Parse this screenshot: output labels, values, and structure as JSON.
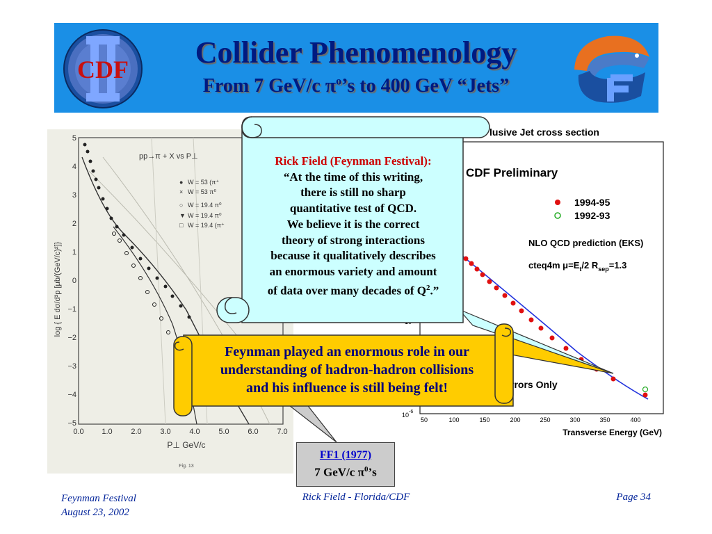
{
  "header": {
    "title": "Collider Phenomenology",
    "subtitle_parts": [
      "From 7 GeV/c ",
      "π",
      "o",
      "’s to 400 GeV “Jets”"
    ],
    "left_logo_text": "CDF",
    "banner_color": "#1a8fe6",
    "title_color": "#001a80"
  },
  "left_plot": {
    "reaction": "pp→π + X  vs  P⊥",
    "legend": [
      {
        "marker": "●",
        "label": "W = 53  (π⁺"
      },
      {
        "marker": "×",
        "label": "W = 53  π⁰"
      },
      {
        "marker": "○",
        "label": "W = 19.4 π⁰"
      },
      {
        "marker": "▼",
        "label": "W = 19.4 π⁰"
      },
      {
        "marker": "□",
        "label": "W = 19.4 (π⁺"
      }
    ],
    "ylabel": "log { E dσ/d³p [μb/(GeV/c)²]}",
    "xlabel": "P⊥  GeV/c",
    "yticks": [
      "5",
      "4",
      "3",
      "2",
      "1",
      "0",
      "−1",
      "−2",
      "−3",
      "−4",
      "−5"
    ],
    "xticks": [
      "0.0",
      "1.0",
      "2.0",
      "3.0",
      "4.0",
      "5.0",
      "6.0",
      "7.0"
    ],
    "figure_label": "Fig. 13"
  },
  "right_plot": {
    "title_fragment": "lusive Jet cross section",
    "preliminary": "CDF Preliminary",
    "legend": [
      {
        "marker": "●",
        "label": "1994-95",
        "color": "#e01010"
      },
      {
        "marker": "○",
        "label": "1992-93",
        "color": "#22aa22"
      }
    ],
    "nlo_label": "NLO QCD prediction (EKS)",
    "cteq_parts": [
      "cteq4m  ",
      "μ",
      "=E",
      "t",
      "/2  R",
      "sep",
      "=1.3"
    ],
    "y_tick_fragment": "10",
    "bottom_tick": "10",
    "bottom_tick_exp": "-6",
    "xticks": [
      "50",
      "100",
      "150",
      "200",
      "250",
      "300",
      "350",
      "400"
    ],
    "xlabel": "Transverse Energy  (GeV)",
    "errors_fragment": "rrors Only"
  },
  "quote": {
    "heading": "Rick Field (Feynman Festival):",
    "lines": [
      "“At the time of this writing,",
      "there is still no sharp",
      "quantitative test of QCD.",
      "We believe it is the correct",
      "theory of strong interactions",
      "because it qualitatively describes",
      "an enormous variety and amount"
    ],
    "last_line_before": "of data over many decades of Q",
    "last_line_sup": "2",
    "last_line_after": ".”"
  },
  "highlight": {
    "lines": [
      "Feynman played an enormous role in our",
      "understanding of hadron-hadron collisions",
      "and his influence is still being felt!"
    ]
  },
  "caption": {
    "link": "FF1 (1977)",
    "text_before": "7 GeV/c ",
    "text_pi": "π",
    "text_sup": "0",
    "text_after": "’s"
  },
  "footer": {
    "event": "Feynman Festival",
    "date": "August 23, 2002",
    "center": "Rick Field - Florida/CDF",
    "page": "Page 34"
  }
}
